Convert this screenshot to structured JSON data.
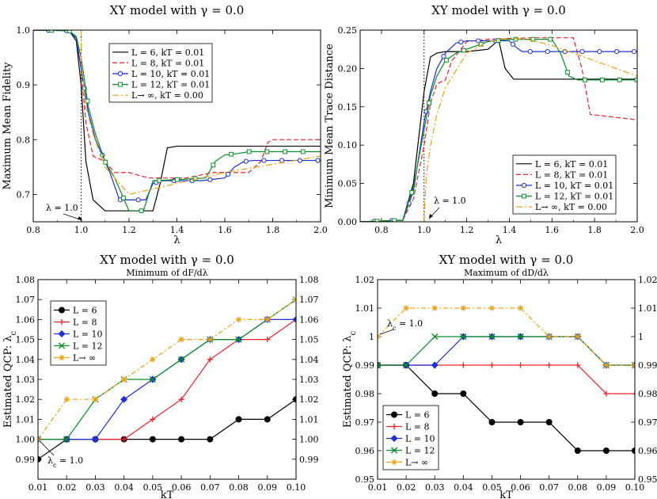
{
  "chart_data": [
    {
      "type": "line",
      "title": "XY model with γ = 0.0",
      "xlabel": "λ",
      "ylabel": "Maximum Mean Fidelity",
      "xlim": [
        0.8,
        2.0
      ],
      "ylim": [
        0.65,
        1.0
      ],
      "xticks": [
        "0.8",
        "1.0",
        "1.2",
        "1.4",
        "1.6",
        "1.8",
        "2.0"
      ],
      "yticks": [
        "0.7",
        "0.8",
        "0.9",
        "1.0"
      ],
      "legend_position": "top-right",
      "vline": 1.0,
      "annotation": "λ = 1.0",
      "series": [
        {
          "name": "L = 6, kT = 0.01",
          "color": "#000000",
          "dash": "",
          "marker": "none",
          "x": [
            0.8,
            0.95,
            0.98,
            1.0,
            1.02,
            1.05,
            1.1,
            1.2,
            1.3,
            1.33,
            1.36,
            1.4,
            2.0
          ],
          "y": [
            1.0,
            0.999,
            0.98,
            0.9,
            0.76,
            0.69,
            0.67,
            0.67,
            0.67,
            0.72,
            0.785,
            0.788,
            0.788
          ]
        },
        {
          "name": "L = 8, kT = 0.01",
          "color": "#e8242b",
          "dash": "6,3",
          "marker": "none",
          "x": [
            0.8,
            0.95,
            0.98,
            1.0,
            1.02,
            1.05,
            1.1,
            1.14,
            1.2,
            1.28,
            1.36,
            1.44,
            1.55,
            1.7,
            1.75,
            1.78,
            1.8,
            2.0
          ],
          "y": [
            1.0,
            0.999,
            0.985,
            0.93,
            0.83,
            0.77,
            0.76,
            0.74,
            0.74,
            0.73,
            0.73,
            0.73,
            0.74,
            0.74,
            0.76,
            0.795,
            0.8,
            0.8
          ]
        },
        {
          "name": "L = 10, kT = 0.01",
          "color": "#1f2fd0",
          "dash": "",
          "marker": "circle",
          "x": [
            0.8,
            0.95,
            0.98,
            1.0,
            1.03,
            1.06,
            1.09,
            1.12,
            1.16,
            1.22,
            1.27,
            1.3,
            1.34,
            1.4,
            1.5,
            1.6,
            1.64,
            1.68,
            1.72,
            1.8,
            2.0
          ],
          "y": [
            1.0,
            0.999,
            0.985,
            0.93,
            0.85,
            0.8,
            0.77,
            0.74,
            0.69,
            0.69,
            0.69,
            0.72,
            0.725,
            0.725,
            0.725,
            0.73,
            0.75,
            0.76,
            0.762,
            0.762,
            0.762
          ]
        },
        {
          "name": "L = 12, kT = 0.01",
          "color": "#0d8b2a",
          "dash": "",
          "marker": "square",
          "x": [
            0.8,
            0.95,
            0.98,
            1.0,
            1.03,
            1.06,
            1.1,
            1.14,
            1.2,
            1.26,
            1.3,
            1.4,
            1.52,
            1.56,
            1.6,
            1.66,
            1.7,
            2.0
          ],
          "y": [
            1.0,
            0.999,
            0.988,
            0.95,
            0.86,
            0.81,
            0.76,
            0.73,
            0.67,
            0.67,
            0.725,
            0.727,
            0.73,
            0.76,
            0.772,
            0.775,
            0.778,
            0.778
          ]
        },
        {
          "name": "L→ ∞, kT = 0.00",
          "color": "#e8a317",
          "dash": "8,3,2,3",
          "marker": "none",
          "x": [
            1.0,
            1.001,
            1.01,
            1.02,
            1.05,
            1.1,
            1.2,
            1.4,
            1.6,
            1.8,
            2.0
          ],
          "y": [
            1.0,
            0.94,
            0.9,
            0.86,
            0.81,
            0.75,
            0.7,
            0.72,
            0.74,
            0.755,
            0.77
          ]
        }
      ]
    },
    {
      "type": "line",
      "title": "XY model with γ = 0.0",
      "xlabel": "λ",
      "ylabel": "Minimum Mean Trace Distance",
      "xlim": [
        0.7,
        2.0
      ],
      "ylim": [
        0.0,
        0.25
      ],
      "xticks": [
        "0.8",
        "1.0",
        "1.2",
        "1.4",
        "1.6",
        "1.8",
        "2.0"
      ],
      "yticks": [
        "0.00",
        "0.05",
        "0.10",
        "0.15",
        "0.20",
        "0.25"
      ],
      "legend_position": "bottom-right",
      "vline": 1.0,
      "annotation": "λ = 1.0",
      "series": [
        {
          "name": "L = 6, kT = 0.01",
          "color": "#000000",
          "dash": "",
          "marker": "none",
          "x": [
            0.7,
            0.9,
            0.95,
            1.0,
            1.03,
            1.06,
            1.1,
            1.2,
            1.3,
            1.35,
            1.38,
            1.42,
            2.0
          ],
          "y": [
            0.0,
            0.002,
            0.05,
            0.17,
            0.215,
            0.22,
            0.222,
            0.222,
            0.225,
            0.237,
            0.2,
            0.186,
            0.186
          ]
        },
        {
          "name": "L = 8, kT = 0.01",
          "color": "#e8242b",
          "dash": "6,3",
          "marker": "none",
          "x": [
            0.7,
            0.9,
            0.95,
            1.0,
            1.03,
            1.06,
            1.1,
            1.13,
            1.2,
            1.3,
            1.5,
            1.7,
            1.74,
            1.78,
            2.0
          ],
          "y": [
            0.0,
            0.002,
            0.03,
            0.1,
            0.155,
            0.18,
            0.185,
            0.21,
            0.235,
            0.238,
            0.24,
            0.24,
            0.2,
            0.14,
            0.133
          ]
        },
        {
          "name": "L = 10, kT = 0.01",
          "color": "#1f2fd0",
          "dash": "",
          "marker": "circle",
          "x": [
            0.7,
            0.9,
            0.95,
            1.0,
            1.03,
            1.06,
            1.1,
            1.15,
            1.2,
            1.3,
            1.4,
            1.43,
            1.46,
            1.5,
            2.0
          ],
          "y": [
            0.0,
            0.002,
            0.04,
            0.13,
            0.17,
            0.2,
            0.22,
            0.233,
            0.236,
            0.236,
            0.236,
            0.228,
            0.222,
            0.222,
            0.222
          ]
        },
        {
          "name": "L = 12, kT = 0.01",
          "color": "#0d8b2a",
          "dash": "",
          "marker": "square",
          "x": [
            0.7,
            0.9,
            0.95,
            1.0,
            1.03,
            1.06,
            1.1,
            1.15,
            1.2,
            1.3,
            1.4,
            1.6,
            1.64,
            1.68,
            1.72,
            2.0
          ],
          "y": [
            0.0,
            0.002,
            0.045,
            0.12,
            0.165,
            0.19,
            0.21,
            0.22,
            0.225,
            0.235,
            0.238,
            0.238,
            0.22,
            0.19,
            0.185,
            0.185
          ]
        },
        {
          "name": "L→ ∞, kT = 0.00",
          "color": "#e8a317",
          "dash": "8,3,2,3",
          "marker": "none",
          "x": [
            1.0,
            1.01,
            1.03,
            1.06,
            1.1,
            1.2,
            1.3,
            1.4,
            1.5,
            1.6,
            1.7,
            1.8,
            1.9,
            2.0
          ],
          "y": [
            0.0,
            0.06,
            0.1,
            0.14,
            0.175,
            0.22,
            0.235,
            0.24,
            0.237,
            0.23,
            0.22,
            0.21,
            0.2,
            0.19
          ]
        }
      ]
    },
    {
      "type": "line",
      "title": "XY model with  γ = 0.0",
      "subtitle": "Minimum of dF/dλ",
      "xlabel": "kT",
      "ylabel": "Estimated QCP: λ",
      "ylabel_sub": "c",
      "xlim": [
        0.01,
        0.1
      ],
      "ylim": [
        0.98,
        1.08
      ],
      "xticks": [
        "0.01",
        "0.02",
        "0.03",
        "0.04",
        "0.05",
        "0.06",
        "0.07",
        "0.08",
        "0.09",
        "0.10"
      ],
      "yticks": [
        "0.99",
        "1.00",
        "1.01",
        "1.02",
        "1.03",
        "1.04",
        "1.05",
        "1.06",
        "1.07",
        "1.08"
      ],
      "legend_position": "top-left",
      "annotation": "λ",
      "annotation_sub": "c",
      "annotation_tail": " = 1.0",
      "x": [
        0.01,
        0.02,
        0.03,
        0.04,
        0.05,
        0.06,
        0.07,
        0.08,
        0.09,
        0.1
      ],
      "series": [
        {
          "name": "L = 6",
          "color": "#000000",
          "dash": "",
          "marker": "dot",
          "values": [
            0.99,
            1.0,
            1.0,
            1.0,
            1.0,
            1.0,
            1.0,
            1.01,
            1.01,
            1.02
          ]
        },
        {
          "name": "L = 8",
          "color": "#e8242b",
          "dash": "",
          "marker": "plus",
          "values": [
            1.0,
            1.0,
            1.0,
            1.0,
            1.01,
            1.02,
            1.04,
            1.05,
            1.05,
            1.06
          ]
        },
        {
          "name": "L = 10",
          "color": "#1f2fd0",
          "dash": "",
          "marker": "diamond",
          "values": [
            1.0,
            1.0,
            1.0,
            1.02,
            1.03,
            1.04,
            1.05,
            1.05,
            1.06,
            1.06
          ]
        },
        {
          "name": "L = 12",
          "color": "#0d8b2a",
          "dash": "",
          "marker": "x",
          "values": [
            1.0,
            1.0,
            1.02,
            1.03,
            1.03,
            1.04,
            1.05,
            1.05,
            1.06,
            1.07
          ]
        },
        {
          "name": "L→ ∞",
          "color": "#e8a317",
          "dash": "6,3,2,3",
          "marker": "star",
          "values": [
            1.0,
            1.02,
            1.02,
            1.03,
            1.04,
            1.05,
            1.05,
            1.06,
            1.06,
            1.07
          ]
        }
      ]
    },
    {
      "type": "line",
      "title": "XY model with  γ = 0.0",
      "subtitle": "Maximum of dD/dλ",
      "xlabel": "kT",
      "ylabel": "Estimated QCP: λ",
      "ylabel_sub": "c",
      "xlim": [
        0.01,
        0.1
      ],
      "ylim": [
        0.95,
        1.02
      ],
      "xticks": [
        "0.01",
        "0.02",
        "0.03",
        "0.04",
        "0.05",
        "0.06",
        "0.07",
        "0.08",
        "0.09",
        "0.10"
      ],
      "yticks": [
        "0.95",
        "0.96",
        "0.97",
        "0.98",
        "0.99",
        "1",
        "1.01",
        "1.02"
      ],
      "legend_position": "bottom-left",
      "annotation": "λ",
      "annotation_sub": "c",
      "annotation_tail": " = 1.0",
      "x": [
        0.01,
        0.02,
        0.03,
        0.04,
        0.05,
        0.06,
        0.07,
        0.08,
        0.09,
        0.1
      ],
      "series": [
        {
          "name": "L = 6",
          "color": "#000000",
          "dash": "",
          "marker": "dot",
          "values": [
            0.99,
            0.99,
            0.98,
            0.98,
            0.97,
            0.97,
            0.97,
            0.96,
            0.96,
            0.96
          ]
        },
        {
          "name": "L = 8",
          "color": "#e8242b",
          "dash": "",
          "marker": "plus",
          "values": [
            0.99,
            0.99,
            0.99,
            0.99,
            0.99,
            0.99,
            0.99,
            0.99,
            0.98,
            0.98
          ]
        },
        {
          "name": "L = 10",
          "color": "#1f2fd0",
          "dash": "",
          "marker": "diamond",
          "values": [
            0.99,
            0.99,
            0.99,
            1.0,
            1.0,
            1.0,
            1.0,
            1.0,
            0.99,
            0.99
          ]
        },
        {
          "name": "L = 12",
          "color": "#0d8b2a",
          "dash": "",
          "marker": "x",
          "values": [
            0.99,
            0.99,
            1.0,
            1.0,
            1.0,
            1.0,
            1.0,
            1.0,
            0.99,
            0.99
          ]
        },
        {
          "name": "L→ ∞",
          "color": "#e8a317",
          "dash": "6,3,2,3",
          "marker": "star",
          "values": [
            1.0,
            1.01,
            1.01,
            1.01,
            1.01,
            1.01,
            1.0,
            1.0,
            0.99,
            0.99
          ]
        }
      ]
    }
  ]
}
